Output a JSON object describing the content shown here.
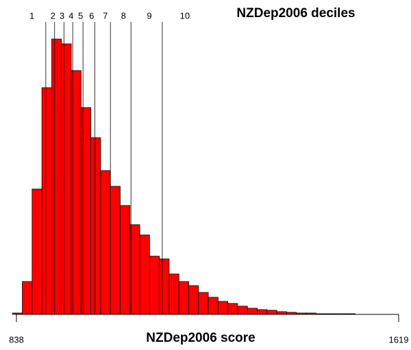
{
  "chart_data": {
    "type": "histogram",
    "title": "NZDep2006 deciles",
    "x_label": "NZDep2006 score",
    "bins": [
      830,
      850,
      870,
      890,
      910,
      930,
      950,
      970,
      990,
      1010,
      1030,
      1050,
      1070,
      1090,
      1110,
      1130,
      1150,
      1170,
      1190,
      1210,
      1230,
      1250,
      1270,
      1290,
      1310,
      1330,
      1350,
      1370,
      1390,
      1410,
      1430,
      1450,
      1470,
      1490,
      1510,
      1530
    ],
    "values": [
      2,
      48,
      183,
      331,
      402,
      395,
      356,
      302,
      258,
      210,
      187,
      159,
      131,
      116,
      85,
      81,
      59,
      48,
      42,
      32,
      25,
      19,
      16,
      12,
      9,
      7,
      6,
      4,
      3,
      2,
      2,
      1,
      1,
      1,
      1
    ],
    "color": "#ff0000",
    "xlim": [
      838,
      1619
    ],
    "xticks": [
      838,
      1619
    ],
    "ylim": [
      0,
      410
    ],
    "deciles": {
      "labels": [
        "1",
        "2",
        "3",
        "4",
        "5",
        "6",
        "7",
        "8",
        "9",
        "10"
      ],
      "boundaries": [
        898,
        916,
        935,
        953,
        974,
        998,
        1030,
        1072,
        1136
      ]
    }
  }
}
